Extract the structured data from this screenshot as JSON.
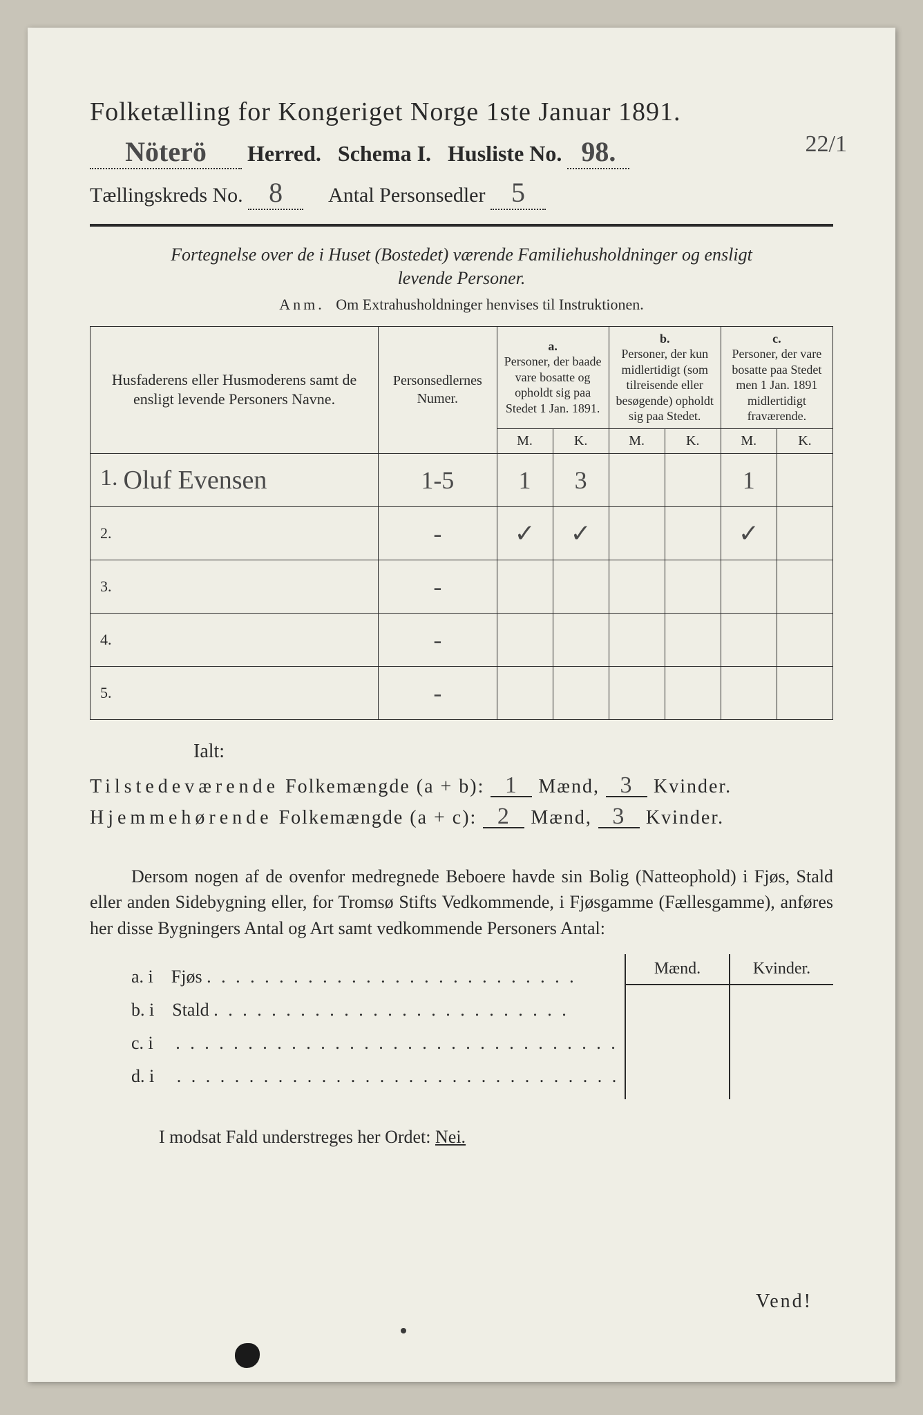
{
  "header": {
    "title": "Folketælling for Kongeriget Norge 1ste Januar 1891.",
    "herred_value": "Nöterö",
    "herred_label": "Herred.",
    "schema_label": "Schema I.",
    "husliste_label": "Husliste No.",
    "husliste_value": "98.",
    "kreds_label": "Tællingskreds No.",
    "kreds_value": "8",
    "antal_label": "Antal Personsedler",
    "antal_value": "5",
    "margin_note": "22/1"
  },
  "subtitle": {
    "line1": "Fortegnelse over de i Huset (Bostedet) værende Familiehusholdninger og ensligt",
    "line2": "levende Personer.",
    "anm_label": "Anm.",
    "anm_text": "Om Extrahusholdninger henvises til Instruktionen."
  },
  "table": {
    "col_names": "Husfaderens eller Husmoderens samt de ensligt levende Personers Navne.",
    "col_num": "Personsedlernes Numer.",
    "col_a_label": "a.",
    "col_a_text": "Personer, der baade vare bosatte og opholdt sig paa Stedet 1 Jan. 1891.",
    "col_b_label": "b.",
    "col_b_text": "Personer, der kun midlertidigt (som tilreisende eller besøgende) opholdt sig paa Stedet.",
    "col_c_label": "c.",
    "col_c_text": "Personer, der vare bosatte paa Stedet men 1 Jan. 1891 midlertidigt fraværende.",
    "m": "M.",
    "k": "K.",
    "rows": [
      {
        "n": "1.",
        "name": "Oluf Evensen",
        "num": "1-5",
        "a_m": "1",
        "a_k": "3",
        "b_m": "",
        "b_k": "",
        "c_m": "1",
        "c_k": ""
      },
      {
        "n": "2.",
        "name": "",
        "num": "-",
        "a_m": "✓",
        "a_k": "✓",
        "b_m": "",
        "b_k": "",
        "c_m": "✓",
        "c_k": ""
      },
      {
        "n": "3.",
        "name": "",
        "num": "-",
        "a_m": "",
        "a_k": "",
        "b_m": "",
        "b_k": "",
        "c_m": "",
        "c_k": ""
      },
      {
        "n": "4.",
        "name": "",
        "num": "-",
        "a_m": "",
        "a_k": "",
        "b_m": "",
        "b_k": "",
        "c_m": "",
        "c_k": ""
      },
      {
        "n": "5.",
        "name": "",
        "num": "-",
        "a_m": "",
        "a_k": "",
        "b_m": "",
        "b_k": "",
        "c_m": "",
        "c_k": ""
      }
    ]
  },
  "totals": {
    "ialt": "Ialt:",
    "line1_a": "Tilstedeværende",
    "line1_b": "Folkemængde (a + b):",
    "line1_m": "1",
    "maend": "Mænd,",
    "line1_k": "3",
    "kvinder": "Kvinder.",
    "line2_a": "Hjemmehørende",
    "line2_b": "Folkemængde (a + c):",
    "line2_m": "2",
    "line2_k": "3"
  },
  "para": "Dersom nogen af de ovenfor medregnede Beboere havde sin Bolig (Natteophold) i Fjøs, Stald eller anden Sidebygning eller, for Tromsø Stifts Vedkommende, i Fjøsgamme (Fællesgamme), anføres her disse Bygningers Antal og Art samt vedkommende Personers Antal:",
  "lower": {
    "maend": "Mænd.",
    "kvinder": "Kvinder.",
    "rows": [
      {
        "label": "a.  i",
        "text": "Fjøs",
        "dots": ". . . . . . . . . . . . . . . . . . . . . . . . . ."
      },
      {
        "label": "b.  i",
        "text": "Stald",
        "dots": ". . . . . . . . . . . . . . . . . . . . . . . . ."
      },
      {
        "label": "c.  i",
        "text": "",
        "dots": ". . . . . . . . . . . . . . . . . . . . . . . . . . . . . . ."
      },
      {
        "label": "d.  i",
        "text": "",
        "dots": ". . . . . . . . . . . . . . . . . . . . . . . . . . . . . . ."
      }
    ]
  },
  "nei_line_a": "I modsat Fald understreges her Ordet:",
  "nei": "Nei.",
  "vend": "Vend!"
}
